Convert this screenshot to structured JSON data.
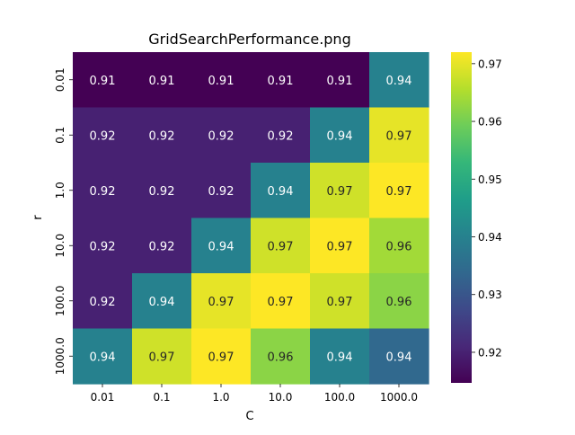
{
  "chart_data": {
    "type": "heatmap",
    "title": "GridSearchPerformance.png",
    "xlabel": "C",
    "ylabel": "r",
    "x_categories": [
      "0.01",
      "0.1",
      "1.0",
      "10.0",
      "100.0",
      "1000.0"
    ],
    "y_categories": [
      "0.01",
      "0.1",
      "1.0",
      "10.0",
      "100.0",
      "1000.0"
    ],
    "values": [
      [
        0.9147,
        0.9147,
        0.9147,
        0.9147,
        0.9147,
        0.94
      ],
      [
        0.92,
        0.92,
        0.92,
        0.92,
        0.94,
        0.97
      ],
      [
        0.92,
        0.92,
        0.92,
        0.94,
        0.968,
        0.972
      ],
      [
        0.92,
        0.92,
        0.94,
        0.968,
        0.972,
        0.964
      ],
      [
        0.92,
        0.94,
        0.97,
        0.972,
        0.968,
        0.962
      ],
      [
        0.94,
        0.968,
        0.972,
        0.962,
        0.94,
        0.934
      ]
    ],
    "annotations": [
      [
        "0.91",
        "0.91",
        "0.91",
        "0.91",
        "0.91",
        "0.94"
      ],
      [
        "0.92",
        "0.92",
        "0.92",
        "0.92",
        "0.94",
        "0.97"
      ],
      [
        "0.92",
        "0.92",
        "0.92",
        "0.94",
        "0.97",
        "0.97"
      ],
      [
        "0.92",
        "0.92",
        "0.94",
        "0.97",
        "0.97",
        "0.96"
      ],
      [
        "0.92",
        "0.94",
        "0.97",
        "0.97",
        "0.97",
        "0.96"
      ],
      [
        "0.94",
        "0.97",
        "0.97",
        "0.96",
        "0.94",
        "0.94"
      ]
    ],
    "colormap": "viridis",
    "vmin": 0.9147,
    "vmax": 0.972,
    "colorbar_ticks": [
      0.92,
      0.93,
      0.94,
      0.95,
      0.96,
      0.97
    ],
    "colorbar_labels": [
      "0.92",
      "0.93",
      "0.94",
      "0.95",
      "0.96",
      "0.97"
    ],
    "grid": false
  }
}
